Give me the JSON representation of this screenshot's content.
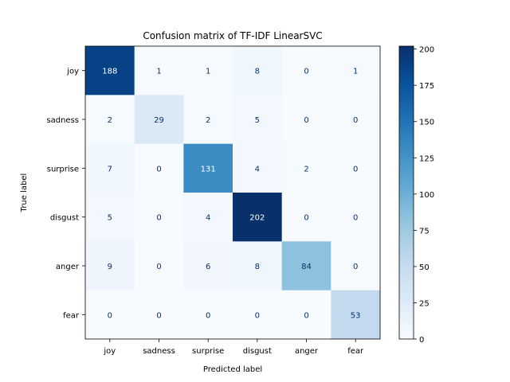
{
  "chart_data": {
    "type": "heatmap",
    "title": "Confusion matrix of TF-IDF LinearSVC",
    "xlabel": "Predicted label",
    "ylabel": "True label",
    "x_categories": [
      "joy",
      "sadness",
      "surprise",
      "disgust",
      "anger",
      "fear"
    ],
    "y_categories": [
      "joy",
      "sadness",
      "surprise",
      "disgust",
      "anger",
      "fear"
    ],
    "values": [
      [
        188,
        1,
        1,
        8,
        0,
        1
      ],
      [
        2,
        29,
        2,
        5,
        0,
        0
      ],
      [
        7,
        0,
        131,
        4,
        2,
        0
      ],
      [
        5,
        0,
        4,
        202,
        0,
        0
      ],
      [
        9,
        0,
        6,
        8,
        84,
        0
      ],
      [
        0,
        0,
        0,
        0,
        0,
        53
      ]
    ],
    "colormap": "Blues",
    "colorbar": {
      "range": [
        0,
        202
      ],
      "ticks": [
        0,
        25,
        50,
        75,
        100,
        125,
        150,
        175,
        200
      ]
    },
    "grid": false
  }
}
